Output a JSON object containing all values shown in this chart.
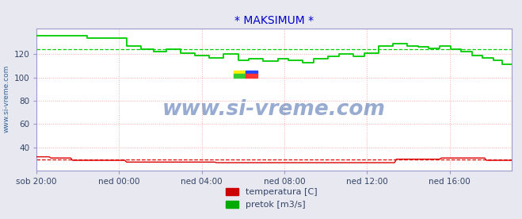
{
  "title": "* MAKSIMUM *",
  "title_color": "#0000cc",
  "bg_color": "#e8e8f0",
  "plot_bg_color": "#ffffff",
  "grid_color": "#ffaaaa",
  "xlabel_color": "#334466",
  "ylabel_label": "www.si-vreme.com",
  "xtick_labels": [
    "sob 20:00",
    "ned 00:00",
    "ned 04:00",
    "ned 08:00",
    "ned 12:00",
    "ned 16:00"
  ],
  "xtick_positions": [
    0,
    240,
    480,
    720,
    960,
    1200
  ],
  "ytick_values": [
    40,
    60,
    80,
    100,
    120
  ],
  "ylim": [
    20,
    142
  ],
  "xlim": [
    0,
    1380
  ],
  "green_avg": 124.0,
  "red_avg": 29.5,
  "legend_labels": [
    "temperatura [C]",
    "pretok [m3/s]"
  ],
  "legend_colors": [
    "#cc0000",
    "#00aa00"
  ],
  "watermark_text": "www.si-vreme.com",
  "watermark_color": "#4466aa",
  "line_color_green": "#00cc00",
  "line_color_red": "#dd0000"
}
